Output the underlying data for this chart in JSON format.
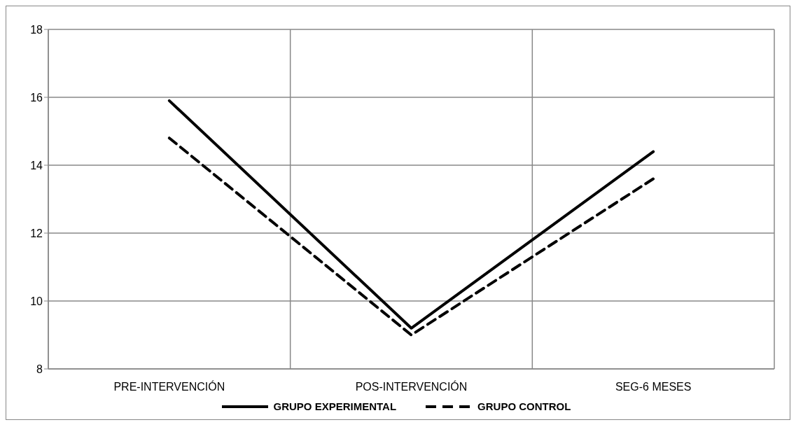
{
  "chart_data": {
    "type": "line",
    "categories": [
      "PRE-INTERVENCIÓN",
      "POS-INTERVENCIÓN",
      "SEG-6 MESES"
    ],
    "series": [
      {
        "name": "GRUPO EXPERIMENTAL",
        "color": "#000000",
        "line_style": "solid",
        "values": [
          15.9,
          9.2,
          14.4
        ]
      },
      {
        "name": "GRUPO CONTROL",
        "color": "#000000",
        "line_style": "dashed",
        "values": [
          14.8,
          9.0,
          13.6
        ]
      }
    ],
    "ylim": [
      8,
      18
    ],
    "yticks": [
      8,
      10,
      12,
      14,
      16,
      18
    ],
    "grid": true,
    "legend": "bottom",
    "marker": "none"
  }
}
